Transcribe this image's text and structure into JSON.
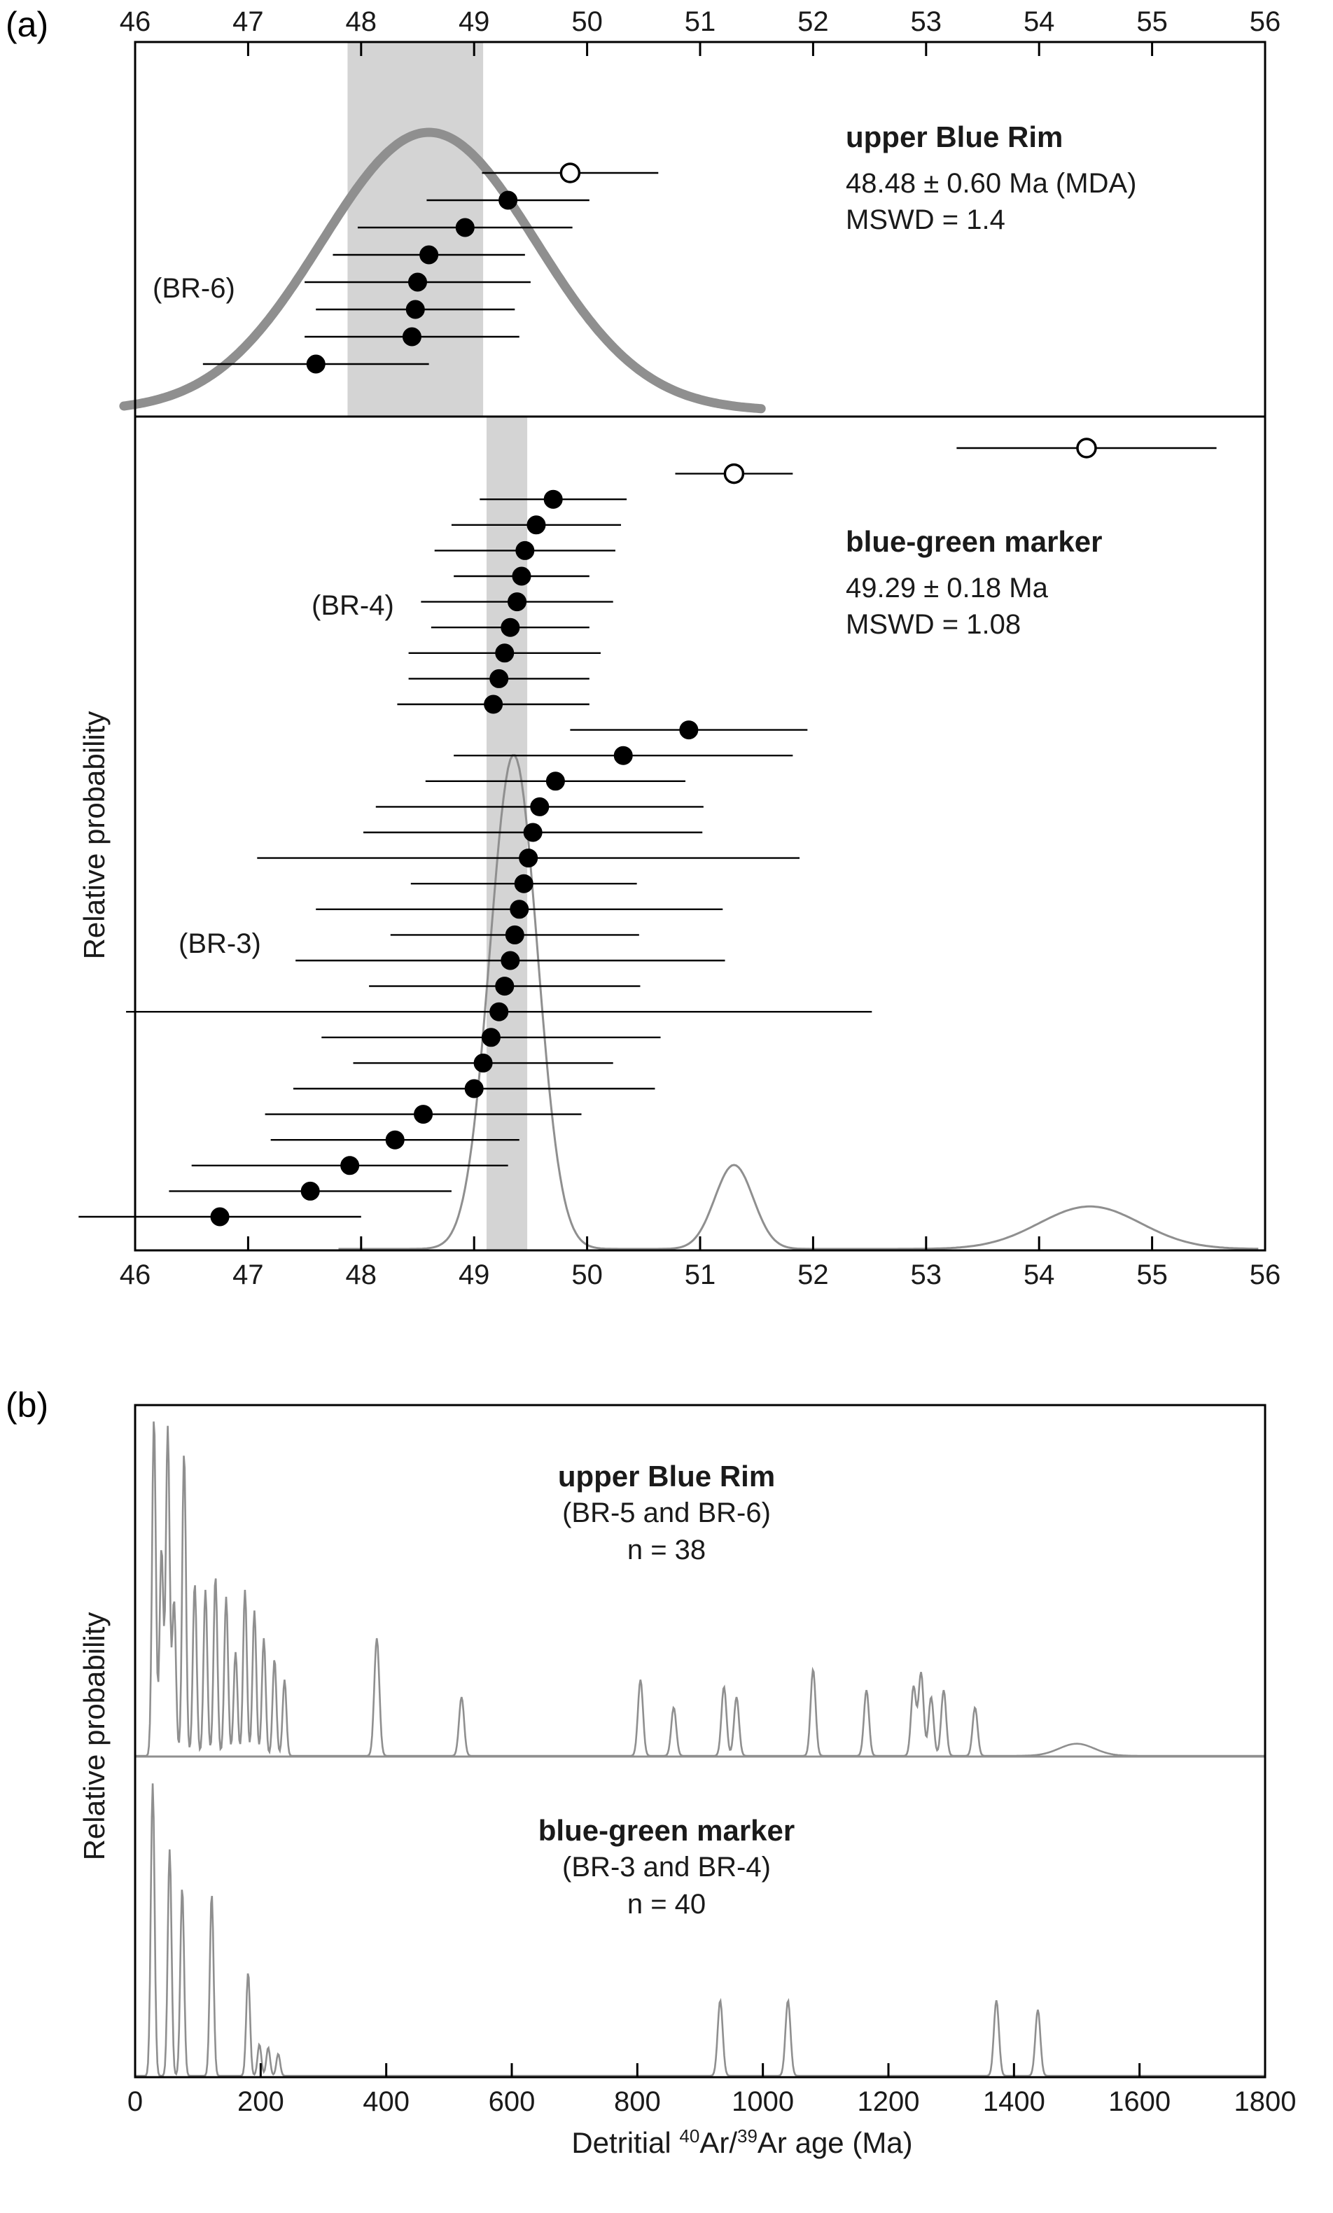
{
  "panel_a_letter": "(a)",
  "panel_b_letter": "(b)",
  "b_xlabel": {
    "prefix": "Detritial ",
    "sup1": "40",
    "mid": "Ar/",
    "sup2": "39",
    "suffix": "Ar age (Ma)"
  },
  "colors": {
    "curve_gray": "#8f8f8f",
    "band_gray": "#d4d4d4",
    "axis_black": "#000000"
  },
  "chart_data": [
    {
      "id": "a-top",
      "type": "scatter",
      "title": "upper Blue Rim",
      "annotation": {
        "age": "48.48 ± 0.60 Ma (MDA)",
        "mswd": "MSWD = 1.4"
      },
      "sample_label": "(BR-6)",
      "ylabel": "Relative probability",
      "xlim": [
        46,
        56
      ],
      "x_tick_labels": [
        "46",
        "47",
        "48",
        "49",
        "50",
        "51",
        "52",
        "53",
        "54",
        "55",
        "56"
      ],
      "band": [
        47.88,
        49.08
      ],
      "pdf_range": [
        45.9,
        51.55
      ],
      "pdf_peaks": [
        {
          "center": 48.6,
          "sigma": 0.95,
          "amp": 1.0
        }
      ],
      "points": [
        {
          "age": 49.85,
          "err": 0.78,
          "open": true
        },
        {
          "age": 49.3,
          "err": 0.72,
          "open": false
        },
        {
          "age": 48.92,
          "err": 0.95,
          "open": false
        },
        {
          "age": 48.6,
          "err": 0.85,
          "open": false
        },
        {
          "age": 48.5,
          "err": 1.0,
          "open": false
        },
        {
          "age": 48.48,
          "err": 0.88,
          "open": false
        },
        {
          "age": 48.45,
          "err": 0.95,
          "open": false
        },
        {
          "age": 47.6,
          "err": 1.0,
          "open": false
        }
      ]
    },
    {
      "id": "a-bottom",
      "type": "scatter",
      "title": "blue-green marker",
      "annotation": {
        "age": "49.29 ± 0.18 Ma",
        "mswd": "MSWD = 1.08"
      },
      "sample_labels": [
        "(BR-4)",
        "(BR-3)"
      ],
      "xlim": [
        46,
        56
      ],
      "x_tick_labels": [
        "46",
        "47",
        "48",
        "49",
        "50",
        "51",
        "52",
        "53",
        "54",
        "55",
        "56"
      ],
      "band": [
        49.11,
        49.47
      ],
      "pdf_range": [
        47.8,
        55.95
      ],
      "pdf_peaks": [
        {
          "center": 49.35,
          "sigma": 0.21,
          "amp": 1.0
        },
        {
          "center": 51.3,
          "sigma": 0.17,
          "amp": 0.17
        },
        {
          "center": 54.45,
          "sigma": 0.45,
          "amp": 0.086
        }
      ],
      "points": [
        {
          "age": 54.42,
          "err": 1.15,
          "open": true
        },
        {
          "age": 51.3,
          "err": 0.52,
          "open": true
        },
        {
          "age": 49.7,
          "err": 0.65,
          "open": false
        },
        {
          "age": 49.55,
          "err": 0.75,
          "open": false
        },
        {
          "age": 49.45,
          "err": 0.8,
          "open": false
        },
        {
          "age": 49.42,
          "err": 0.6,
          "open": false
        },
        {
          "age": 49.38,
          "err": 0.85,
          "open": false
        },
        {
          "age": 49.32,
          "err": 0.7,
          "open": false
        },
        {
          "age": 49.27,
          "err": 0.85,
          "open": false
        },
        {
          "age": 49.22,
          "err": 0.8,
          "open": false
        },
        {
          "age": 49.17,
          "err": 0.85,
          "open": false
        },
        {
          "age": 50.9,
          "err": 1.05,
          "open": false
        },
        {
          "age": 50.32,
          "err": 1.5,
          "open": false
        },
        {
          "age": 49.72,
          "err": 1.15,
          "open": false
        },
        {
          "age": 49.58,
          "err": 1.45,
          "open": false
        },
        {
          "age": 49.52,
          "err": 1.5,
          "open": false
        },
        {
          "age": 49.48,
          "err": 2.4,
          "open": false
        },
        {
          "age": 49.44,
          "err": 1.0,
          "open": false
        },
        {
          "age": 49.4,
          "err": 1.8,
          "open": false
        },
        {
          "age": 49.36,
          "err": 1.1,
          "open": false
        },
        {
          "age": 49.32,
          "err": 1.9,
          "open": false
        },
        {
          "age": 49.27,
          "err": 1.2,
          "open": false
        },
        {
          "age": 49.22,
          "err": 3.3,
          "open": false
        },
        {
          "age": 49.15,
          "err": 1.5,
          "open": false
        },
        {
          "age": 49.08,
          "err": 1.15,
          "open": false
        },
        {
          "age": 49.0,
          "err": 1.6,
          "open": false
        },
        {
          "age": 48.55,
          "err": 1.4,
          "open": false
        },
        {
          "age": 48.3,
          "err": 1.1,
          "open": false
        },
        {
          "age": 47.9,
          "err": 1.4,
          "open": false
        },
        {
          "age": 47.55,
          "err": 1.25,
          "open": false
        },
        {
          "age": 46.75,
          "err": 1.25,
          "open": false
        }
      ]
    },
    {
      "id": "b-top",
      "type": "area",
      "title": "upper Blue Rim",
      "subtitle": "(BR-5 and BR-6)",
      "n_label": "n = 38",
      "ylabel": "Relative probability",
      "xlim": [
        0,
        1800
      ],
      "x_tick_labels": [
        "0",
        "200",
        "400",
        "600",
        "800",
        "1000",
        "1200",
        "1400",
        "1600",
        "1800"
      ],
      "peaks": [
        {
          "age": 30,
          "h": 0.98,
          "w": 3
        },
        {
          "age": 42,
          "h": 0.6,
          "w": 3
        },
        {
          "age": 52,
          "h": 0.95,
          "w": 3
        },
        {
          "age": 62,
          "h": 0.45,
          "w": 3
        },
        {
          "age": 78,
          "h": 0.88,
          "w": 3
        },
        {
          "age": 95,
          "h": 0.5,
          "w": 3
        },
        {
          "age": 112,
          "h": 0.48,
          "w": 3
        },
        {
          "age": 128,
          "h": 0.52,
          "w": 3
        },
        {
          "age": 145,
          "h": 0.46,
          "w": 3
        },
        {
          "age": 160,
          "h": 0.3,
          "w": 3
        },
        {
          "age": 175,
          "h": 0.48,
          "w": 3
        },
        {
          "age": 190,
          "h": 0.42,
          "w": 3
        },
        {
          "age": 205,
          "h": 0.34,
          "w": 3
        },
        {
          "age": 222,
          "h": 0.28,
          "w": 3
        },
        {
          "age": 238,
          "h": 0.22,
          "w": 3
        },
        {
          "age": 385,
          "h": 0.34,
          "w": 4
        },
        {
          "age": 520,
          "h": 0.17,
          "w": 4
        },
        {
          "age": 805,
          "h": 0.22,
          "w": 4
        },
        {
          "age": 858,
          "h": 0.14,
          "w": 4
        },
        {
          "age": 938,
          "h": 0.2,
          "w": 4
        },
        {
          "age": 958,
          "h": 0.17,
          "w": 4
        },
        {
          "age": 1080,
          "h": 0.25,
          "w": 4
        },
        {
          "age": 1165,
          "h": 0.19,
          "w": 4
        },
        {
          "age": 1240,
          "h": 0.2,
          "w": 4
        },
        {
          "age": 1252,
          "h": 0.24,
          "w": 4
        },
        {
          "age": 1268,
          "h": 0.17,
          "w": 4
        },
        {
          "age": 1288,
          "h": 0.19,
          "w": 4
        },
        {
          "age": 1338,
          "h": 0.14,
          "w": 4
        },
        {
          "age": 1500,
          "h": 0.035,
          "w": 28
        }
      ]
    },
    {
      "id": "b-bottom",
      "type": "area",
      "title": "blue-green marker",
      "subtitle": "(BR-3 and BR-4)",
      "n_label": "n = 40",
      "xlim": [
        0,
        1800
      ],
      "x_tick_labels": [
        "0",
        "200",
        "400",
        "600",
        "800",
        "1000",
        "1200",
        "1400",
        "1600",
        "1800"
      ],
      "peaks": [
        {
          "age": 28,
          "h": 0.93,
          "w": 3
        },
        {
          "age": 55,
          "h": 0.72,
          "w": 3
        },
        {
          "age": 75,
          "h": 0.6,
          "w": 3
        },
        {
          "age": 122,
          "h": 0.58,
          "w": 3
        },
        {
          "age": 180,
          "h": 0.33,
          "w": 3
        },
        {
          "age": 198,
          "h": 0.1,
          "w": 3
        },
        {
          "age": 212,
          "h": 0.09,
          "w": 3
        },
        {
          "age": 228,
          "h": 0.07,
          "w": 3
        },
        {
          "age": 932,
          "h": 0.24,
          "w": 4
        },
        {
          "age": 1040,
          "h": 0.24,
          "w": 4
        },
        {
          "age": 1372,
          "h": 0.24,
          "w": 4
        },
        {
          "age": 1438,
          "h": 0.21,
          "w": 4
        }
      ]
    }
  ]
}
